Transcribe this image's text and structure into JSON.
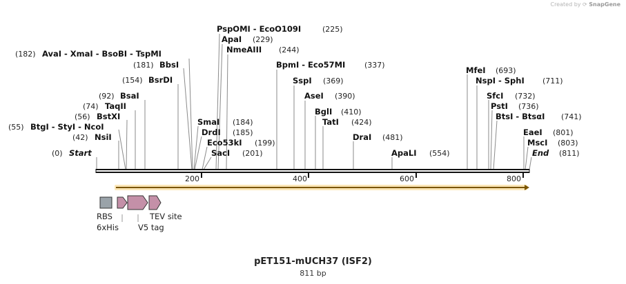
{
  "credit": {
    "prefix": "Created by",
    "brand": "SnapGene"
  },
  "title": "pET151-mUCH37 (ISF2)",
  "subtitle": "811 bp",
  "ruler": {
    "ticks": [
      "200",
      "400",
      "600",
      "800"
    ]
  },
  "sites": [
    {
      "enzyme": "Start",
      "pos_label": "(0)",
      "italic": true
    },
    {
      "enzyme": "NsiI",
      "pos_label": "(42)"
    },
    {
      "enzyme": "BtgI - StyI - NcoI",
      "pos_label": "(55)"
    },
    {
      "enzyme": "BstXI",
      "pos_label": "(56)"
    },
    {
      "enzyme": "TaqII",
      "pos_label": "(74)"
    },
    {
      "enzyme": "BsaI",
      "pos_label": "(92)"
    },
    {
      "enzyme": "BsrDI",
      "pos_label": "(154)"
    },
    {
      "enzyme": "BbsI",
      "pos_label": "(181)"
    },
    {
      "enzyme": "AvaI - XmaI - BsoBI - TspMI",
      "pos_label": "(182)"
    },
    {
      "enzyme": "SmaI",
      "pos_label": "(184)"
    },
    {
      "enzyme": "DrdI",
      "pos_label": "(185)"
    },
    {
      "enzyme": "Eco53kI",
      "pos_label": "(199)"
    },
    {
      "enzyme": "SacI",
      "pos_label": "(201)"
    },
    {
      "enzyme": "PspOMI - EcoO109I",
      "pos_label": "(225)"
    },
    {
      "enzyme": "ApaI",
      "pos_label": "(229)"
    },
    {
      "enzyme": "NmeAIII",
      "pos_label": "(244)"
    },
    {
      "enzyme": "BpmI - Eco57MI",
      "pos_label": "(337)"
    },
    {
      "enzyme": "SspI",
      "pos_label": "(369)"
    },
    {
      "enzyme": "AseI",
      "pos_label": "(390)"
    },
    {
      "enzyme": "BglI",
      "pos_label": "(410)"
    },
    {
      "enzyme": "TatI",
      "pos_label": "(424)"
    },
    {
      "enzyme": "DraI",
      "pos_label": "(481)"
    },
    {
      "enzyme": "ApaLI",
      "pos_label": "(554)"
    },
    {
      "enzyme": "MfeI",
      "pos_label": "(693)"
    },
    {
      "enzyme": "NspI - SphI",
      "pos_label": "(711)"
    },
    {
      "enzyme": "SfcI",
      "pos_label": "(732)"
    },
    {
      "enzyme": "PstI",
      "pos_label": "(736)"
    },
    {
      "enzyme": "BtsI - BtsαI",
      "pos_label": "(741)"
    },
    {
      "enzyme": "EaeI",
      "pos_label": "(801)"
    },
    {
      "enzyme": "MscI",
      "pos_label": "(803)"
    },
    {
      "enzyme": "End",
      "pos_label": "(811)",
      "italic": true
    }
  ],
  "features": [
    {
      "name": "RBS",
      "type": "box",
      "color": "#9aa3a9"
    },
    {
      "name": "6xHis",
      "type": "arrow",
      "color": "#c490a8"
    },
    {
      "name": "V5 tag",
      "type": "arrow",
      "color": "#c490a8"
    },
    {
      "name": "TEV site",
      "type": "arrow",
      "color": "#c490a8"
    }
  ],
  "orf_color": "#f2b640"
}
